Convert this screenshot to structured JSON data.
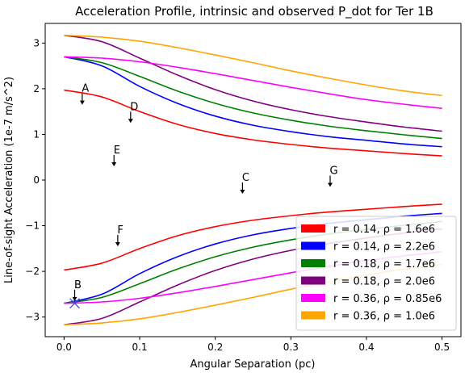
{
  "chart_data": {
    "type": "line",
    "title": "Acceleration Profile, intrinsic and observed P_dot for Ter 1B",
    "xlabel": "Angular Separation (pc)",
    "ylabel": "Line-of-sight Acceleration (1e-7 m/s^2)",
    "xlim": [
      -0.025,
      0.525
    ],
    "ylim": [
      -3.43,
      3.43
    ],
    "xticks": [
      0.0,
      0.1,
      0.2,
      0.3,
      0.4,
      0.5
    ],
    "xtick_labels": [
      "0.0",
      "0.1",
      "0.2",
      "0.3",
      "0.4",
      "0.5"
    ],
    "yticks": [
      -3,
      -2,
      -1,
      0,
      1,
      2,
      3
    ],
    "ytick_labels": [
      "−3",
      "−2",
      "−1",
      "0",
      "1",
      "2",
      "3"
    ],
    "grid": false,
    "legend_position": "lower-right",
    "series": [
      {
        "name": "r = 0.14, ρ = 1.6e6",
        "color": "#ff0000",
        "x": [
          0.0,
          0.05,
          0.1,
          0.15,
          0.2,
          0.25,
          0.3,
          0.35,
          0.4,
          0.45,
          0.5
        ],
        "upper": [
          1.97,
          1.82,
          1.5,
          1.22,
          1.02,
          0.88,
          0.78,
          0.7,
          0.64,
          0.58,
          0.53
        ],
        "lower": [
          -1.97,
          -1.82,
          -1.5,
          -1.22,
          -1.02,
          -0.88,
          -0.78,
          -0.7,
          -0.64,
          -0.58,
          -0.53
        ]
      },
      {
        "name": "r = 0.14, ρ = 2.2e6",
        "color": "#0000ff",
        "x": [
          0.0,
          0.05,
          0.1,
          0.15,
          0.2,
          0.25,
          0.3,
          0.35,
          0.4,
          0.45,
          0.5
        ],
        "upper": [
          2.7,
          2.5,
          2.05,
          1.68,
          1.4,
          1.2,
          1.06,
          0.95,
          0.87,
          0.79,
          0.73
        ],
        "lower": [
          -2.7,
          -2.5,
          -2.05,
          -1.68,
          -1.4,
          -1.2,
          -1.06,
          -0.95,
          -0.87,
          -0.79,
          -0.73
        ]
      },
      {
        "name": "r = 0.18, ρ = 1.7e6",
        "color": "#008000",
        "x": [
          0.0,
          0.05,
          0.1,
          0.15,
          0.2,
          0.25,
          0.3,
          0.35,
          0.4,
          0.45,
          0.5
        ],
        "upper": [
          2.7,
          2.57,
          2.27,
          1.95,
          1.68,
          1.47,
          1.31,
          1.18,
          1.08,
          0.99,
          0.91
        ],
        "lower": [
          -2.7,
          -2.57,
          -2.27,
          -1.95,
          -1.68,
          -1.47,
          -1.31,
          -1.18,
          -1.08,
          -0.99,
          -0.91
        ]
      },
      {
        "name": "r = 0.18, ρ = 2.0e6",
        "color": "#800080",
        "x": [
          0.0,
          0.05,
          0.1,
          0.15,
          0.2,
          0.25,
          0.3,
          0.35,
          0.4,
          0.45,
          0.5
        ],
        "upper": [
          3.17,
          3.03,
          2.67,
          2.3,
          1.98,
          1.73,
          1.54,
          1.39,
          1.27,
          1.16,
          1.07
        ],
        "lower": [
          -3.17,
          -3.03,
          -2.67,
          -2.3,
          -1.98,
          -1.73,
          -1.54,
          -1.39,
          -1.27,
          -1.16,
          -1.07
        ]
      },
      {
        "name": "r = 0.36, ρ = 0.85e6",
        "color": "#ff00ff",
        "x": [
          0.0,
          0.05,
          0.1,
          0.15,
          0.2,
          0.25,
          0.3,
          0.35,
          0.4,
          0.45,
          0.5
        ],
        "upper": [
          2.7,
          2.67,
          2.59,
          2.47,
          2.33,
          2.18,
          2.03,
          1.89,
          1.76,
          1.66,
          1.57
        ],
        "lower": [
          -2.7,
          -2.67,
          -2.59,
          -2.47,
          -2.33,
          -2.18,
          -2.03,
          -1.89,
          -1.76,
          -1.66,
          -1.57
        ]
      },
      {
        "name": "r = 0.36, ρ = 1.0e6",
        "color": "#ffa500",
        "x": [
          0.0,
          0.05,
          0.1,
          0.15,
          0.2,
          0.25,
          0.3,
          0.35,
          0.4,
          0.45,
          0.5
        ],
        "upper": [
          3.17,
          3.13,
          3.04,
          2.9,
          2.74,
          2.57,
          2.39,
          2.23,
          2.08,
          1.95,
          1.85
        ],
        "lower": [
          -3.17,
          -3.13,
          -3.04,
          -2.9,
          -2.74,
          -2.57,
          -2.39,
          -2.23,
          -2.08,
          -1.95,
          -1.85
        ]
      }
    ],
    "annotations": [
      {
        "label": "A",
        "x": 0.024,
        "y": 1.65,
        "arrow": "down"
      },
      {
        "label": "D",
        "x": 0.088,
        "y": 1.25,
        "arrow": "down"
      },
      {
        "label": "E",
        "x": 0.066,
        "y": 0.3,
        "arrow": "down"
      },
      {
        "label": "C",
        "x": 0.236,
        "y": -0.3,
        "arrow": "down"
      },
      {
        "label": "G",
        "x": 0.352,
        "y": -0.15,
        "arrow": "down"
      },
      {
        "label": "F",
        "x": 0.071,
        "y": -1.45,
        "arrow": "down"
      },
      {
        "label": "B",
        "x": 0.014,
        "y": -2.65,
        "arrow": "down"
      }
    ],
    "marker": {
      "x": 0.014,
      "y": -2.7,
      "symbol": "x",
      "color": "#4040ff"
    }
  }
}
